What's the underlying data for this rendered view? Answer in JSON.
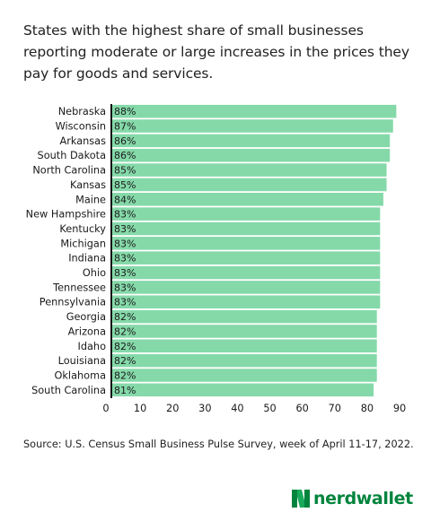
{
  "title": "States with the highest share of small businesses reporting moderate or large increases in the prices they pay for goods and services.",
  "source": "Source: U.S. Census Small Business Pulse Survey, week of April 11-17, 2022.",
  "brand": {
    "name": "nerdwallet",
    "color": "#00843d"
  },
  "colors": {
    "bar": "#85d9a9",
    "bar_stroke": "#ffffff",
    "axis": "#111111"
  },
  "chart_data": {
    "type": "bar",
    "orientation": "horizontal",
    "categories": [
      "Nebraska",
      "Wisconsin",
      "Arkansas",
      "South Dakota",
      "North Carolina",
      "Kansas",
      "Maine",
      "New Hampshire",
      "Kentucky",
      "Michigan",
      "Indiana",
      "Ohio",
      "Tennessee",
      "Pennsylvania",
      "Georgia",
      "Arizona",
      "Idaho",
      "Louisiana",
      "Oklahoma",
      "South Carolina"
    ],
    "values": [
      88,
      87,
      86,
      86,
      85,
      85,
      84,
      83,
      83,
      83,
      83,
      83,
      83,
      83,
      82,
      82,
      82,
      82,
      82,
      81
    ],
    "data_labels": [
      "88%",
      "87%",
      "86%",
      "86%",
      "85%",
      "85%",
      "84%",
      "83%",
      "83%",
      "83%",
      "83%",
      "83%",
      "83%",
      "83%",
      "82%",
      "82%",
      "82%",
      "82%",
      "82%",
      "81%"
    ],
    "xlim": [
      0,
      90
    ],
    "xticks": [
      0,
      10,
      20,
      30,
      40,
      50,
      60,
      70,
      80,
      90
    ],
    "xlabel": "",
    "ylabel": "",
    "grid": false,
    "legend": "none"
  }
}
